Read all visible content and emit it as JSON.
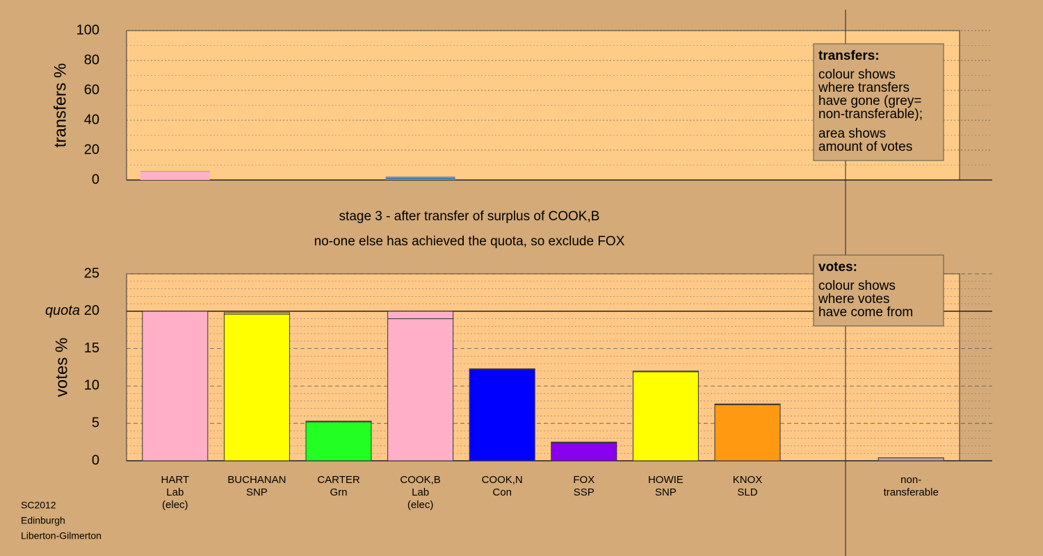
{
  "footer": [
    "SC2012",
    "Edinburgh",
    "Liberton-Gilmerton"
  ],
  "chart_data": [
    {
      "type": "bar",
      "stacked": true,
      "y_label": "transfers %",
      "ylim": [
        0,
        100
      ],
      "yticks": [
        0,
        20,
        40,
        60,
        80,
        100
      ],
      "grid": true,
      "series": [
        {
          "color": "#ffb0c8",
          "values": [
            5.5,
            0,
            0,
            0,
            0,
            0,
            0,
            0,
            null,
            0
          ]
        },
        {
          "color": "#22cc22",
          "values": [
            0,
            0,
            0,
            0.8,
            0,
            0,
            0,
            0,
            null,
            0
          ]
        },
        {
          "color": "#4060e0",
          "values": [
            0,
            0,
            0,
            0.8,
            0,
            0,
            0,
            0,
            null,
            0
          ]
        },
        {
          "color": "#a0a0a0",
          "values": [
            0.5,
            0,
            0,
            0.9,
            0,
            0,
            0,
            0,
            null,
            0
          ]
        }
      ],
      "legend": {
        "title": "transfers:",
        "paragraphs": [
          [
            "colour shows",
            "where transfers",
            "have gone (grey=",
            "non-transferable);"
          ],
          [
            "area shows",
            "amount of votes"
          ]
        ]
      }
    },
    {
      "type": "bar",
      "stacked": true,
      "y_label": "votes %",
      "title": [
        "stage 3 - after transfer of surplus of COOK,B",
        "no-one else has achieved the quota, so exclude FOX"
      ],
      "categories": [
        [
          "HART",
          "Lab",
          "(elec)"
        ],
        [
          "BUCHANAN",
          "SNP"
        ],
        [
          "CARTER",
          "Grn"
        ],
        [
          "COOK,B",
          "Lab",
          "(elec)"
        ],
        [
          "COOK,N",
          "Con"
        ],
        [
          "FOX",
          "SSP"
        ],
        [
          "HOWIE",
          "SNP"
        ],
        [
          "KNOX",
          "SLD"
        ],
        null,
        [
          "non-",
          "transferable"
        ]
      ],
      "colors": [
        "#ffb0c8",
        "#ffff00",
        "#22ff22",
        "#ffb0c8",
        "#0000ff",
        "#8800ee",
        "#ffff00",
        "#ff9912",
        null,
        "#c8a0a0"
      ],
      "ylim": [
        0,
        25
      ],
      "yticks": [
        0,
        5,
        10,
        15,
        20,
        25
      ],
      "grid": true,
      "quota": {
        "value": 20,
        "label": "quota"
      },
      "series": [
        {
          "values": [
            20,
            19.6,
            5.2,
            19,
            12.2,
            2.4,
            11.9,
            7.5,
            null,
            0.4
          ]
        },
        {
          "values": [
            0,
            0.2,
            0.1,
            1,
            0.1,
            0.1,
            0.1,
            0.1,
            null,
            0
          ]
        }
      ],
      "legend": {
        "title": "votes:",
        "paragraphs": [
          [
            "colour shows",
            "where votes",
            "have come from"
          ]
        ]
      }
    }
  ]
}
